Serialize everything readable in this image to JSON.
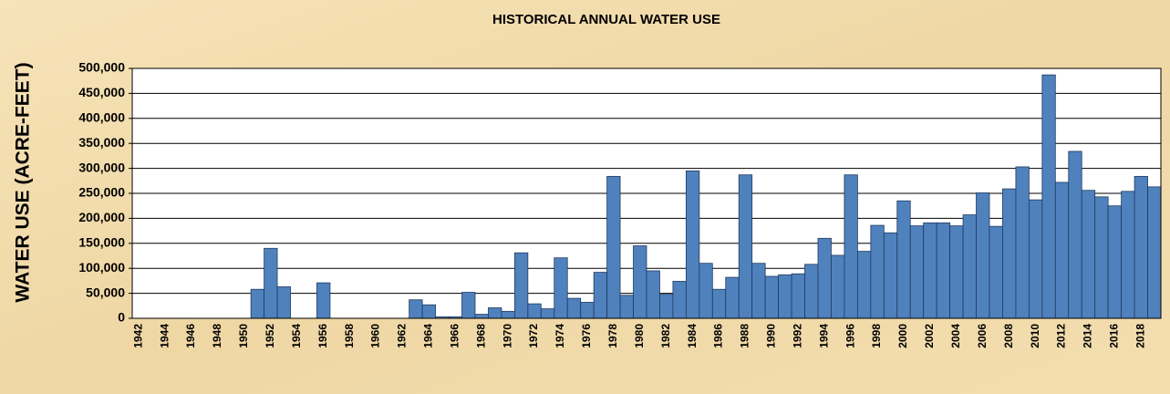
{
  "chart_data": {
    "type": "bar",
    "title": "HISTORICAL ANNUAL WATER USE",
    "y_label": "WATER USE (ACRE-FEET)",
    "categories": [
      "1942",
      null,
      "1944",
      null,
      "1946",
      null,
      "1948",
      null,
      "1950",
      null,
      "1952",
      null,
      "1954",
      null,
      "1956",
      null,
      "1958",
      null,
      "1960",
      null,
      "1962",
      null,
      "1964",
      null,
      "1966",
      null,
      "1968",
      null,
      "1970",
      null,
      "1972",
      null,
      "1974",
      null,
      "1976",
      null,
      "1978",
      null,
      "1980",
      null,
      "1982",
      null,
      "1984",
      null,
      "1986",
      null,
      "1988",
      null,
      "1990",
      null,
      "1992",
      null,
      "1994",
      null,
      "1996",
      null,
      "1998",
      null,
      "2000",
      null,
      "2002",
      null,
      "2004",
      null,
      "2006",
      null,
      "2008",
      null,
      "2010",
      null,
      "2012",
      null,
      "2014",
      null,
      "2016",
      null,
      "2018",
      null
    ],
    "values": [
      0,
      0,
      0,
      0,
      0,
      0,
      0,
      0,
      0,
      58000,
      140000,
      63000,
      0,
      0,
      71000,
      0,
      0,
      0,
      0,
      0,
      0,
      37000,
      27000,
      3000,
      3000,
      52000,
      8000,
      21000,
      14000,
      131000,
      29000,
      19000,
      121000,
      40000,
      32000,
      92000,
      284000,
      46000,
      145000,
      95000,
      48000,
      74000,
      295000,
      110000,
      58000,
      82000,
      287000,
      110000,
      84000,
      87000,
      89000,
      108000,
      160000,
      126000,
      287000,
      134000,
      186000,
      171000,
      235000,
      185000,
      191000,
      191000,
      185000,
      207000,
      251000,
      184000,
      259000,
      303000,
      237000,
      487000,
      272000,
      334000,
      256000,
      243000,
      225000,
      254000,
      284000,
      263000
    ],
    "color": "#4f81bd",
    "ylim": [
      0,
      500000
    ],
    "yticks": [
      0,
      {
        "value": 50000,
        "label": "50,000"
      },
      {
        "value": 100000,
        "label": "100,000"
      },
      {
        "value": 150000,
        "label": "150,000"
      },
      {
        "value": 200000,
        "label": "200,000"
      },
      {
        "value": 250000,
        "label": "250,000"
      },
      {
        "value": 300000,
        "label": "300,000"
      },
      {
        "value": 350000,
        "label": "350,000"
      },
      {
        "value": 400000,
        "label": "400,000"
      },
      {
        "value": 450000,
        "label": "450,000"
      },
      {
        "value": 500000,
        "label": "500,000"
      }
    ],
    "grid": true
  }
}
